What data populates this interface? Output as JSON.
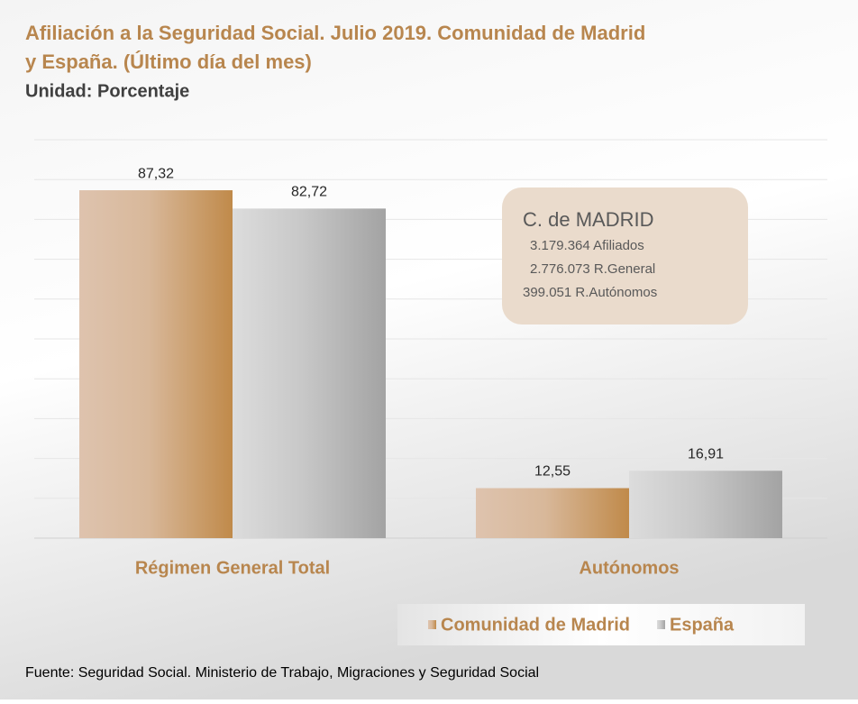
{
  "chart_data": {
    "type": "bar",
    "title_lines": [
      "Afiliación a la Seguridad Social. Julio 2019. Comunidad de Madrid",
      "y España. (Último día del mes)"
    ],
    "subtitle": "Unidad: Porcentaje",
    "categories": [
      "Régimen General Total",
      "Autónomos"
    ],
    "series": [
      {
        "name": "Comunidad de Madrid",
        "color": "#c08a4a",
        "values": [
          87.32,
          12.55
        ],
        "value_labels": [
          "87,32",
          "12,55"
        ]
      },
      {
        "name": "España",
        "color": "#a3a3a3",
        "values": [
          82.72,
          16.91
        ],
        "value_labels": [
          "82,72",
          "16,91"
        ]
      }
    ],
    "ylim": [
      0,
      100
    ],
    "yticks": [
      0,
      10,
      20,
      30,
      40,
      50,
      60,
      70,
      80,
      90,
      100
    ],
    "grid": true,
    "annotation": {
      "heading": "C. de MADRID",
      "lines": [
        "3.179.364 Afiliados",
        "2.776.073  R.General",
        "399.051 R.Autónomos"
      ]
    },
    "source": "Fuente: Seguridad Social. Ministerio de Trabajo, Migraciones y Seguridad Social"
  }
}
